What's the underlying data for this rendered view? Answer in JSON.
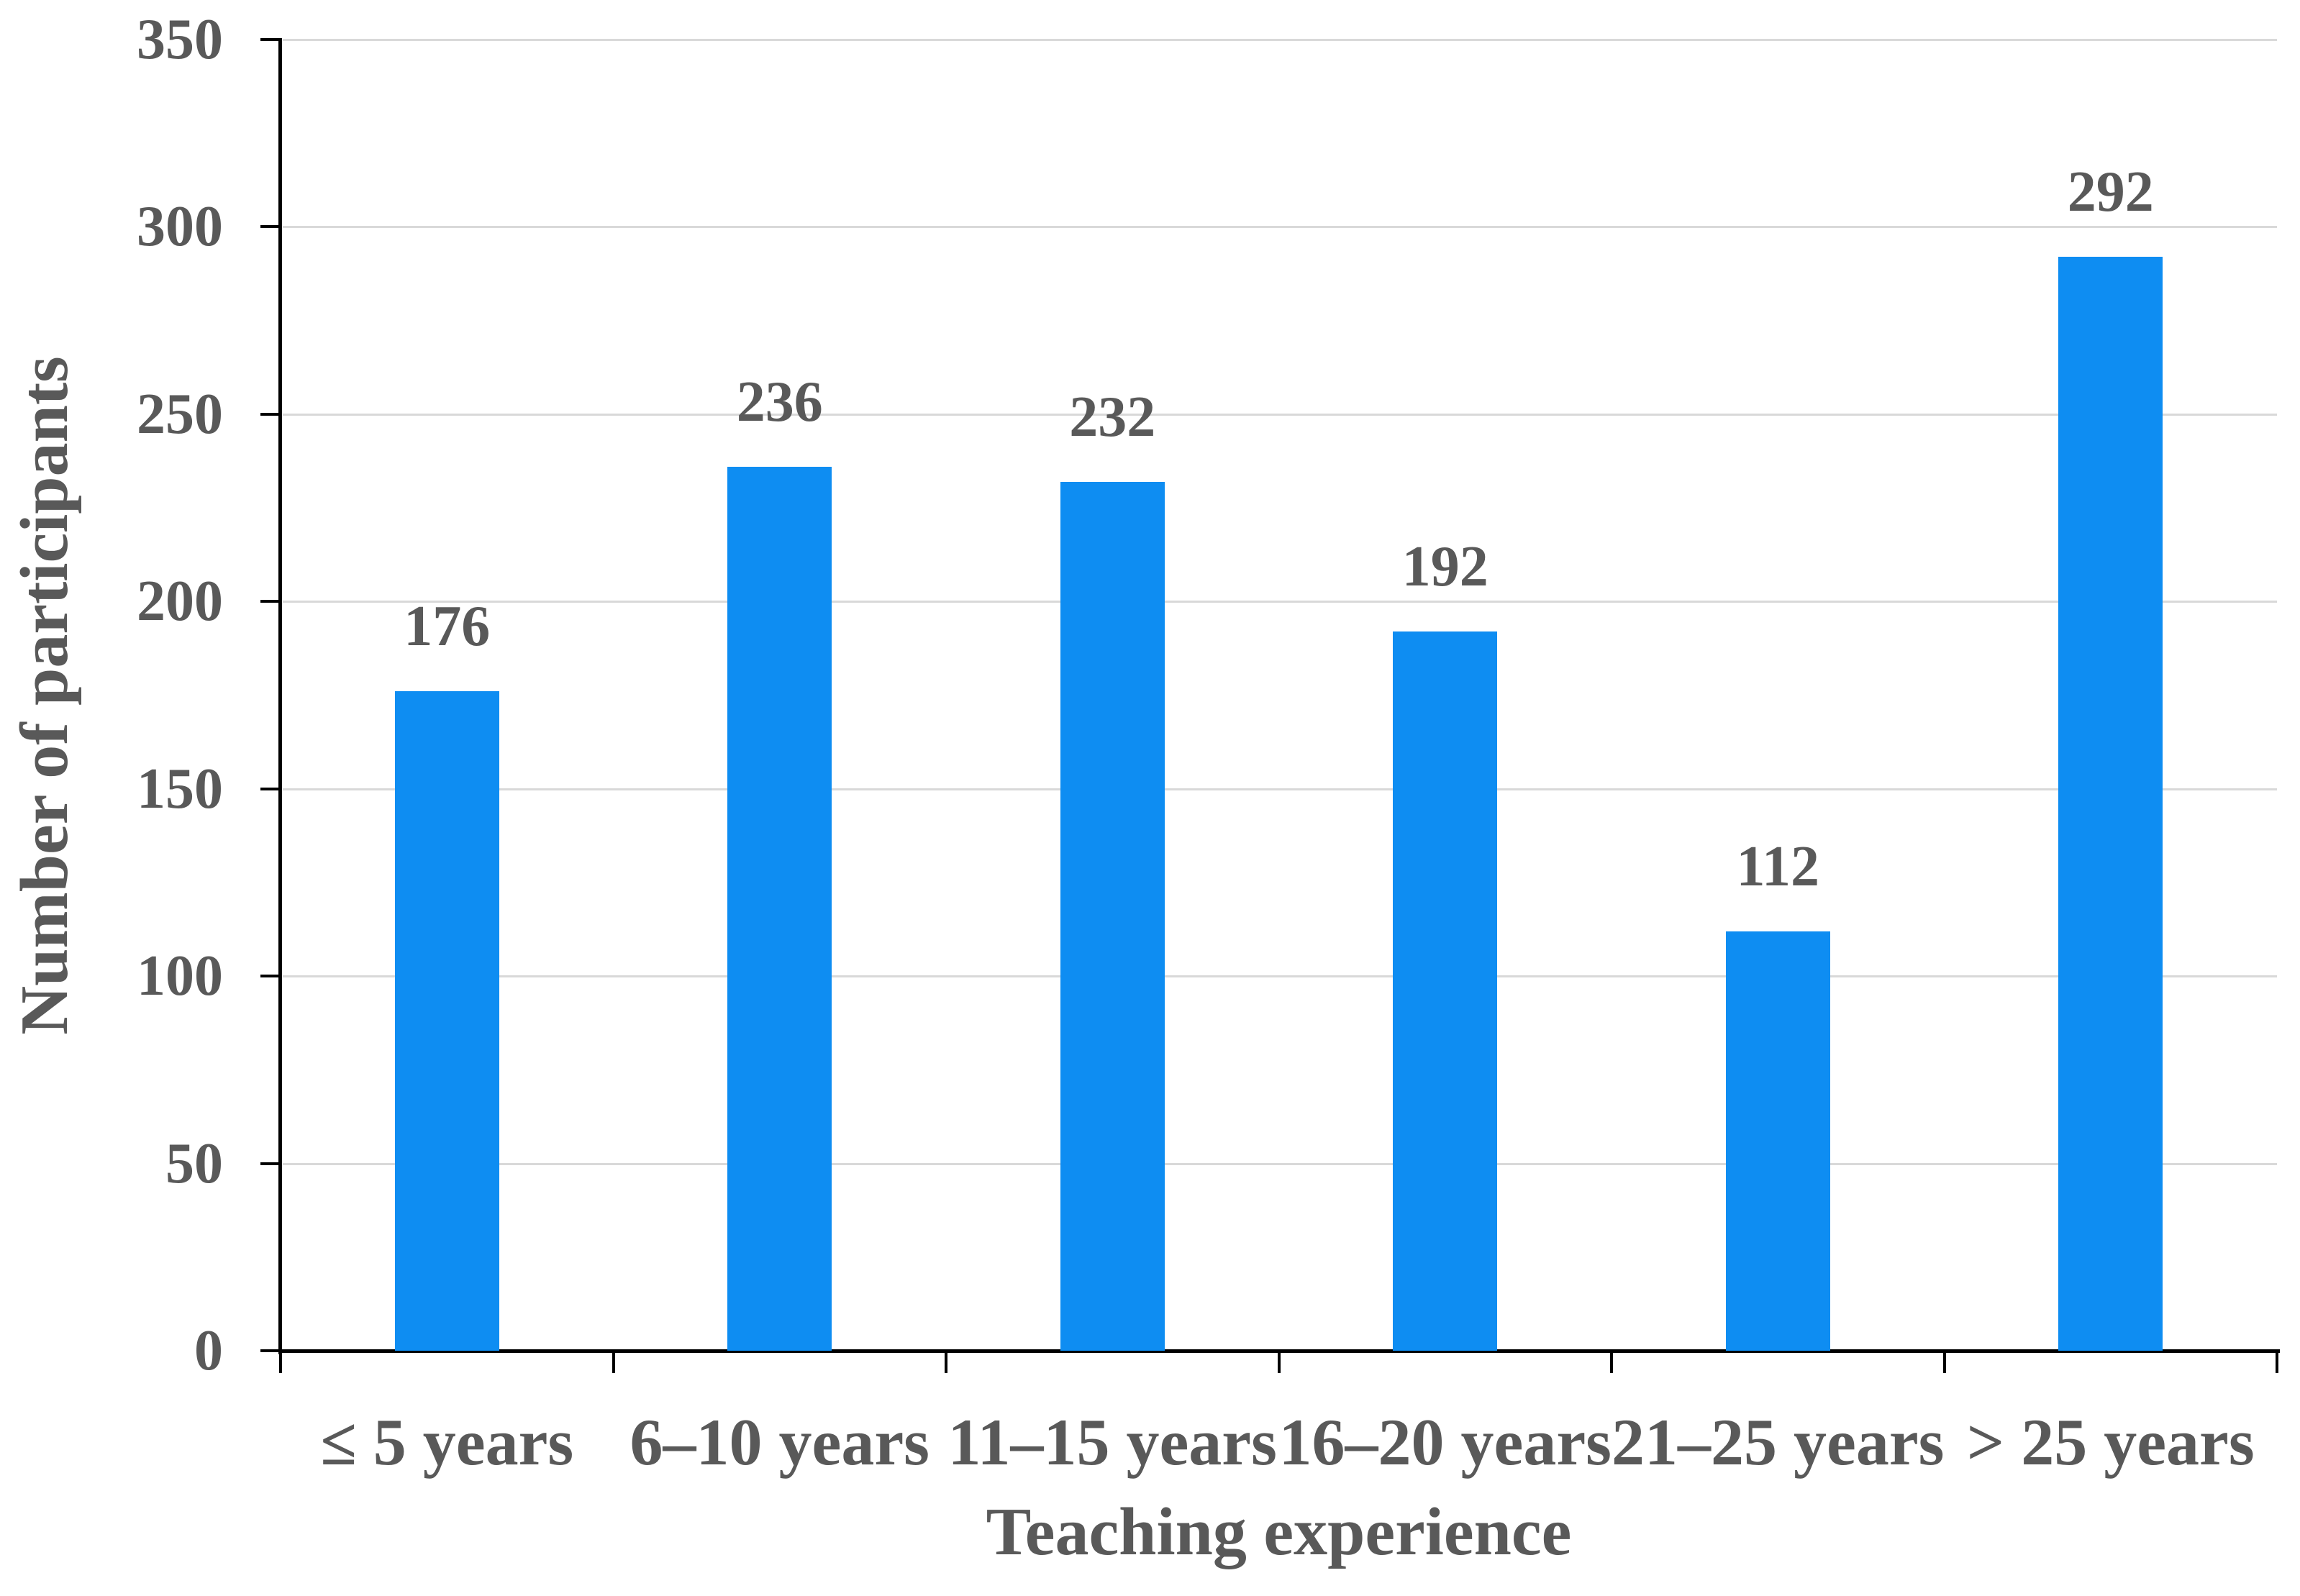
{
  "chart_data": {
    "type": "bar",
    "title": "",
    "categories": [
      "≤ 5 years",
      "6–10 years",
      "11–15 years",
      "16–20 years",
      "21–25 years",
      "> 25 years"
    ],
    "values": [
      176,
      236,
      232,
      192,
      112,
      292
    ],
    "xlabel": "Teaching experience",
    "ylabel": "Number of participants",
    "ylim": [
      0,
      350
    ],
    "ytick_step": 50,
    "yticks": [
      "0",
      "50",
      "100",
      "150",
      "200",
      "250",
      "300",
      "350"
    ],
    "grid": true,
    "legend": "none",
    "data_labels_shown": true,
    "colors": {
      "bar": "#0e8df2",
      "text": "#595959",
      "gridline": "#d9d9d9",
      "axis": "#000000",
      "background": "#ffffff"
    }
  }
}
